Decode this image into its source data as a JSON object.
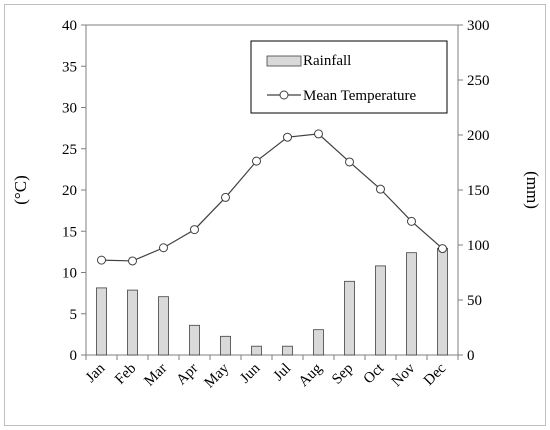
{
  "chart_data": {
    "type": "bar+line",
    "categories": [
      "Jan",
      "Feb",
      "Mar",
      "Apr",
      "May",
      "Jun",
      "Jul",
      "Aug",
      "Sep",
      "Oct",
      "Nov",
      "Dec"
    ],
    "series": [
      {
        "name": "Rainfall",
        "type": "bar",
        "axis": "right",
        "values": [
          61,
          59,
          53,
          27,
          17,
          8,
          8,
          23,
          67,
          81,
          93,
          97
        ]
      },
      {
        "name": "Mean Temperature",
        "type": "line",
        "axis": "left",
        "values": [
          11.5,
          11.4,
          13.0,
          15.2,
          19.1,
          23.5,
          26.4,
          26.8,
          23.4,
          20.1,
          16.2,
          12.9
        ]
      }
    ],
    "ylabel": "(°C)",
    "ylabel_right": "(mm)",
    "ylim": [
      0,
      40
    ],
    "ylim_right": [
      0,
      300
    ],
    "yticks": [
      0,
      5,
      10,
      15,
      20,
      25,
      30,
      35,
      40
    ],
    "yticks_right": [
      0,
      50,
      100,
      150,
      200,
      250,
      300
    ],
    "grid": false,
    "legend_position": "top-right",
    "colors": {
      "bar_fill": "#d9d9d9",
      "bar_stroke": "#404040",
      "line": "#404040",
      "marker_fill": "#ffffff",
      "axis": "#7f7f7f",
      "frame": "#bfbfbf"
    }
  }
}
